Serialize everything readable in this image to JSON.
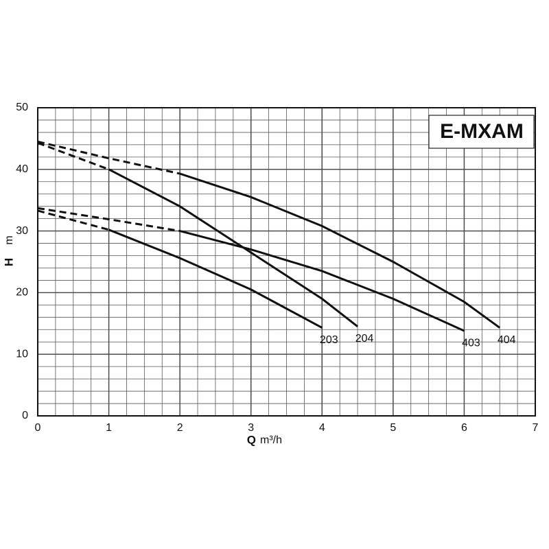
{
  "chart_data": {
    "type": "line",
    "title": "E-MXAM",
    "xlabel": "Q",
    "xlabel_unit": "m³/h",
    "ylabel": "H",
    "ylabel_unit": "m",
    "xlim": [
      0,
      7
    ],
    "xticks": [
      0,
      1,
      2,
      3,
      4,
      5,
      6,
      7
    ],
    "ylim": [
      0,
      50
    ],
    "yticks": [
      0,
      10,
      20,
      30,
      40,
      50
    ],
    "x_minor_step": 0.25,
    "y_minor_step": 2,
    "grid": true,
    "series": [
      {
        "name": "203",
        "color": "#111111",
        "dash_end_x": 1,
        "x": [
          0,
          1,
          2,
          3,
          4
        ],
        "values": [
          33.3,
          30.2,
          25.6,
          20.5,
          14.3
        ]
      },
      {
        "name": "204",
        "color": "#111111",
        "dash_end_x": 1,
        "x": [
          0,
          1,
          2,
          3,
          4,
          4.5
        ],
        "values": [
          44.3,
          40,
          34,
          26.5,
          19,
          14.5
        ]
      },
      {
        "name": "403",
        "color": "#111111",
        "dash_end_x": 2,
        "x": [
          0,
          1,
          2,
          3,
          4,
          5,
          6
        ],
        "values": [
          33.7,
          31.9,
          30,
          27,
          23.5,
          19,
          13.8
        ]
      },
      {
        "name": "404",
        "color": "#111111",
        "dash_end_x": 2,
        "x": [
          0,
          1,
          2,
          3,
          4,
          5,
          6,
          6.5
        ],
        "values": [
          44.5,
          41.8,
          39.3,
          35.5,
          30.8,
          25,
          18.5,
          14.3
        ]
      }
    ]
  }
}
